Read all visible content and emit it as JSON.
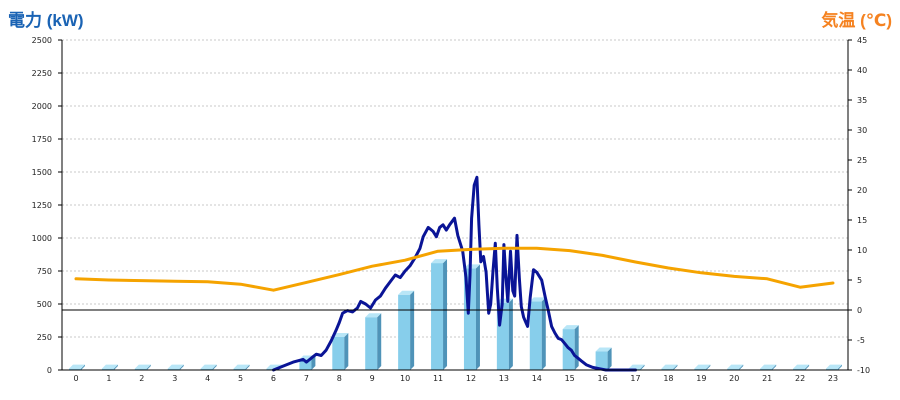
{
  "titles": {
    "left_axis": "電力 (kW)",
    "right_axis": "気温 (℃)"
  },
  "colors": {
    "power_bar": "#87ceeb",
    "power_bar_side": "#4f93b8",
    "power_bar_top": "#b8e6f7",
    "power_line": "#0a1496",
    "temperature_line": "#f5a300",
    "grid": "#c8c8c8",
    "axis": "#000000"
  },
  "chart_data": {
    "type": "bar",
    "categories": [
      "0",
      "1",
      "2",
      "3",
      "4",
      "5",
      "6",
      "7",
      "8",
      "9",
      "10",
      "11",
      "12",
      "13",
      "14",
      "15",
      "16",
      "17",
      "18",
      "19",
      "20",
      "21",
      "22",
      "23"
    ],
    "x_range": [
      0,
      23
    ],
    "ylim_left": [
      0,
      2500
    ],
    "ylim_right": [
      -10,
      45
    ],
    "yticks_left": [
      0,
      250,
      500,
      750,
      1000,
      1250,
      1500,
      1750,
      2000,
      2250,
      2500
    ],
    "yticks_right": [
      -10,
      -5,
      0,
      5,
      10,
      15,
      20,
      25,
      30,
      35,
      40,
      45
    ],
    "grid": true,
    "zero_line_right_axis": 0,
    "series": [
      {
        "type": "bar",
        "axis": "left",
        "values": [
          10,
          10,
          10,
          10,
          10,
          10,
          10,
          80,
          250,
          400,
          570,
          810,
          770,
          510,
          520,
          310,
          140,
          10,
          10,
          10,
          10,
          10,
          10,
          10
        ]
      },
      {
        "type": "line",
        "axis": "left",
        "x": [
          6.0,
          6.3,
          6.6,
          6.9,
          7.0,
          7.15,
          7.3,
          7.45,
          7.6,
          7.75,
          7.9,
          8.0,
          8.1,
          8.25,
          8.4,
          8.55,
          8.65,
          8.8,
          8.95,
          9.1,
          9.25,
          9.4,
          9.55,
          9.7,
          9.85,
          10.0,
          10.15,
          10.3,
          10.45,
          10.55,
          10.7,
          10.85,
          10.95,
          11.05,
          11.15,
          11.25,
          11.35,
          11.5,
          11.6,
          11.75,
          11.85,
          11.92,
          11.97,
          12.02,
          12.1,
          12.18,
          12.24,
          12.3,
          12.38,
          12.46,
          12.54,
          12.6,
          12.67,
          12.74,
          12.8,
          12.87,
          12.95,
          13.0,
          13.05,
          13.12,
          13.2,
          13.27,
          13.33,
          13.4,
          13.47,
          13.53,
          13.6,
          13.65,
          13.72,
          13.8,
          13.9,
          14.0,
          14.15,
          14.25,
          14.35,
          14.45,
          14.55,
          14.65,
          14.75,
          14.85,
          14.95,
          15.05,
          15.15,
          15.25,
          15.35,
          15.5,
          15.7,
          15.9,
          16.1,
          16.3,
          16.5,
          16.7,
          16.9,
          17.0
        ],
        "values": [
          0,
          30,
          60,
          80,
          60,
          90,
          120,
          110,
          150,
          220,
          300,
          360,
          430,
          450,
          440,
          470,
          520,
          500,
          470,
          530,
          560,
          620,
          670,
          720,
          700,
          750,
          790,
          850,
          920,
          1010,
          1080,
          1050,
          1010,
          1080,
          1100,
          1060,
          1100,
          1150,
          1020,
          900,
          700,
          430,
          720,
          1150,
          1400,
          1460,
          1100,
          820,
          860,
          740,
          430,
          500,
          750,
          960,
          620,
          340,
          500,
          950,
          750,
          520,
          900,
          600,
          560,
          1020,
          700,
          480,
          400,
          370,
          330,
          550,
          760,
          740,
          680,
          560,
          450,
          330,
          280,
          240,
          230,
          200,
          170,
          150,
          110,
          90,
          70,
          40,
          20,
          10,
          0,
          0,
          0,
          0,
          0,
          0
        ]
      },
      {
        "type": "line",
        "axis": "right",
        "x": [
          0,
          1,
          2,
          3,
          4,
          5,
          6,
          7,
          8,
          9,
          10,
          11,
          12,
          13,
          14,
          15,
          16,
          17,
          18,
          19,
          20,
          21,
          22,
          23
        ],
        "values": [
          5.2,
          5.0,
          4.9,
          4.8,
          4.7,
          4.3,
          3.3,
          4.6,
          5.9,
          7.3,
          8.3,
          9.8,
          10.1,
          10.3,
          10.3,
          9.9,
          9.1,
          8.0,
          7.0,
          6.2,
          5.6,
          5.2,
          3.8,
          4.5
        ]
      }
    ]
  }
}
